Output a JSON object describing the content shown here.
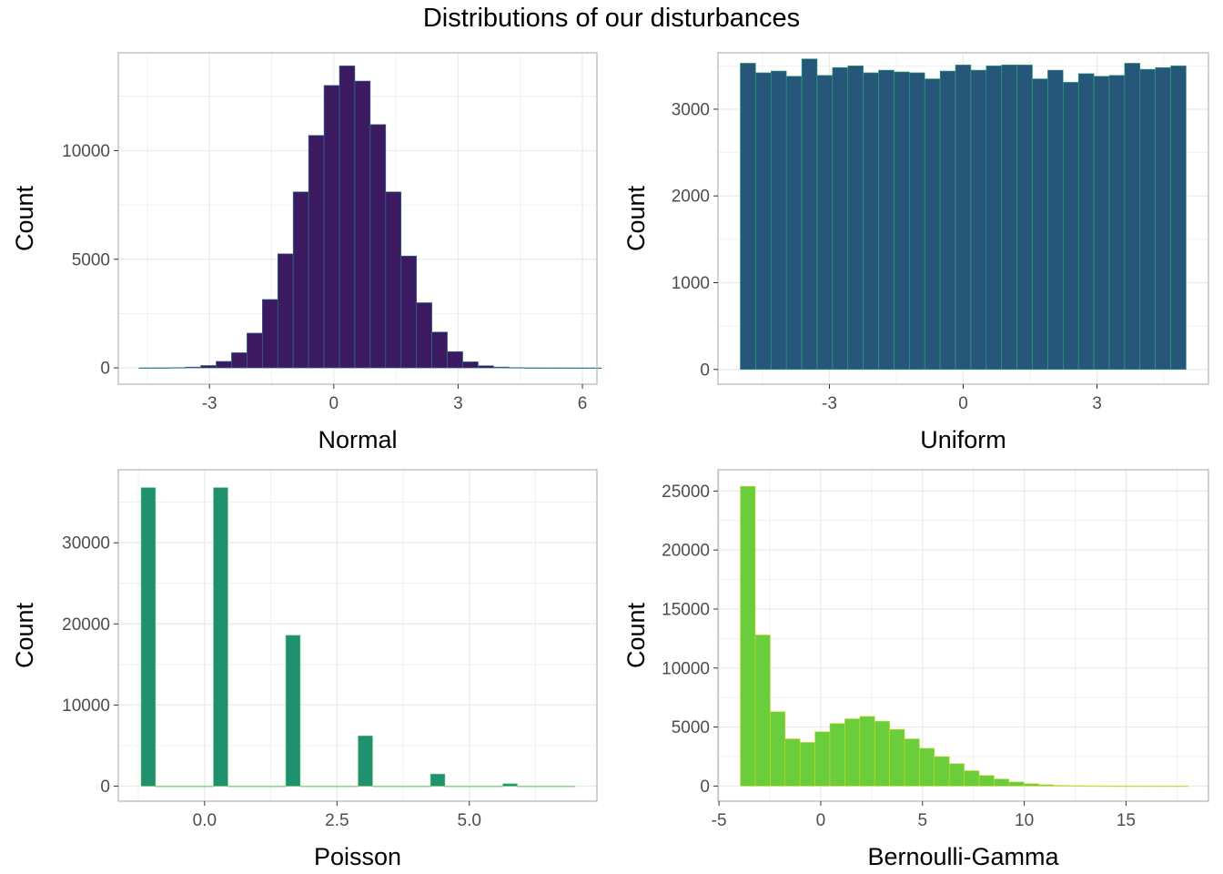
{
  "title": "Distributions of our disturbances",
  "theme": {
    "grid_color": "#ebebeb",
    "border_color": "#b3b3b3",
    "tick_label_color": "#4d4d4d",
    "axis_title_color": "#000000"
  },
  "chart_data": [
    {
      "type": "bar",
      "name": "normal",
      "xlabel": "Normal",
      "ylabel": "Count",
      "fill": "#3b1a62",
      "outline": "#2a7b8e",
      "xlim": [
        -5.2,
        6.35
      ],
      "ylim": [
        -750,
        14500
      ],
      "xticks": [
        -3,
        0,
        3,
        6
      ],
      "xtick_labels": [
        "-3",
        "0",
        "3",
        "6"
      ],
      "yticks": [
        0,
        5000,
        10000
      ],
      "ytick_labels": [
        "0",
        "5000",
        "10000"
      ],
      "bin_width": 0.372,
      "bin_start": -4.7,
      "values": [
        3,
        5,
        15,
        40,
        110,
        300,
        700,
        1600,
        3150,
        5250,
        8100,
        10700,
        13000,
        13900,
        13200,
        11200,
        8100,
        5150,
        3000,
        1650,
        750,
        280,
        100,
        40,
        15,
        6,
        3,
        2,
        1,
        1
      ]
    },
    {
      "type": "bar",
      "name": "uniform",
      "xlabel": "Uniform",
      "ylabel": "Count",
      "fill": "#26577a",
      "outline": "#2ca77a",
      "xlim": [
        -5.5,
        5.5
      ],
      "ylim": [
        -170,
        3650
      ],
      "xticks": [
        -3,
        0,
        3
      ],
      "xtick_labels": [
        "-3",
        "0",
        "3"
      ],
      "yticks": [
        0,
        1000,
        2000,
        3000
      ],
      "ytick_labels": [
        "0",
        "1000",
        "2000",
        "3000"
      ],
      "bin_width": 0.3448,
      "bin_start": -5.0,
      "values": [
        3530,
        3420,
        3440,
        3380,
        3580,
        3390,
        3480,
        3500,
        3420,
        3450,
        3430,
        3420,
        3350,
        3440,
        3510,
        3450,
        3500,
        3510,
        3510,
        3350,
        3450,
        3310,
        3410,
        3380,
        3390,
        3530,
        3460,
        3480,
        3500
      ]
    },
    {
      "type": "bar",
      "name": "poisson",
      "xlabel": "Poisson",
      "ylabel": "Count",
      "fill": "#21906f",
      "outline": "#6dd06a",
      "xlim": [
        -1.63,
        7.41
      ],
      "ylim": [
        -1850,
        39000
      ],
      "xticks": [
        0,
        2.5,
        5
      ],
      "xtick_labels": [
        "0.0",
        "2.5",
        "5.0"
      ],
      "yticks": [
        0,
        10000,
        20000,
        30000
      ],
      "ytick_labels": [
        "0",
        "10000",
        "20000",
        "30000"
      ],
      "bin_width": 0.2733,
      "bin_start": -1.2,
      "values": [
        36800,
        0,
        0,
        0,
        0,
        36800,
        0,
        0,
        0,
        0,
        18600,
        0,
        0,
        0,
        0,
        6200,
        0,
        0,
        0,
        0,
        1500,
        0,
        0,
        0,
        0,
        300,
        0,
        0,
        0,
        0
      ]
    },
    {
      "type": "bar",
      "name": "bernoulli-gamma",
      "xlabel": "Bernoulli-Gamma",
      "ylabel": "Count",
      "fill": "#6acd3c",
      "outline": "#c9da2a",
      "xlim": [
        -5.05,
        19.05
      ],
      "ylim": [
        -1280,
        26800
      ],
      "xticks": [
        -5,
        0,
        5,
        10,
        15
      ],
      "xtick_labels": [
        "-5",
        "0",
        "5",
        "10",
        "15"
      ],
      "yticks": [
        0,
        5000,
        10000,
        15000,
        20000,
        25000
      ],
      "ytick_labels": [
        "0",
        "5000",
        "10000",
        "15000",
        "20000",
        "25000"
      ],
      "bin_width": 0.7333,
      "bin_start": -3.95,
      "values": [
        25400,
        12800,
        6300,
        4000,
        3700,
        4600,
        5300,
        5700,
        5900,
        5500,
        4800,
        4000,
        3200,
        2500,
        1900,
        1300,
        900,
        600,
        350,
        200,
        110,
        60,
        30,
        15,
        8,
        5,
        3,
        2,
        1,
        1
      ]
    }
  ]
}
